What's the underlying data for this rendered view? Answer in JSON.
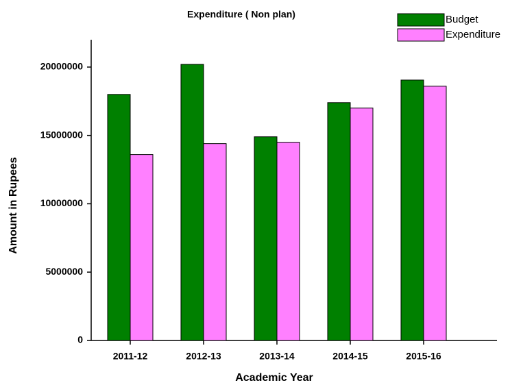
{
  "chart_data": {
    "type": "bar",
    "title": "Expenditure ( Non plan)",
    "x_label": "Academic Year",
    "y_label": "Amount in Rupees",
    "categories": [
      "2011-12",
      "2012-13",
      "2013-14",
      "2014-15",
      "2015-16"
    ],
    "series": [
      {
        "name": "Budget",
        "color": "#008000",
        "values": [
          18000000,
          20200000,
          14900000,
          17400000,
          19050000
        ]
      },
      {
        "name": "Expenditure",
        "color": "#ff80ff",
        "values": [
          13600000,
          14400000,
          14500000,
          17000000,
          18600000
        ]
      }
    ],
    "ylim": [
      0,
      22000000
    ],
    "yticks": [
      0,
      5000000,
      10000000,
      15000000,
      20000000
    ],
    "legend": "upper right",
    "grid": false
  }
}
